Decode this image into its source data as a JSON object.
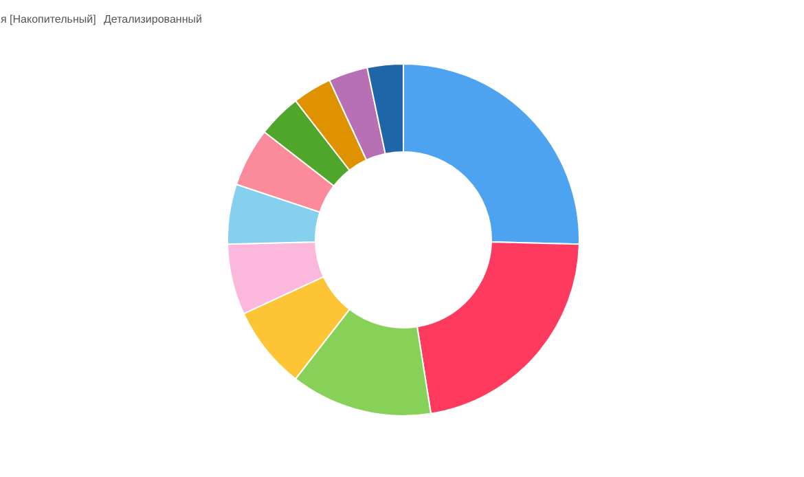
{
  "chart_data": {
    "type": "donut",
    "annotations": [
      "я [Накопительный]",
      "Детализированный"
    ],
    "categories": [
      null,
      null,
      null,
      null,
      null,
      null,
      null,
      null,
      null,
      null,
      null
    ],
    "values": [
      25.4,
      22.1,
      13.0,
      7.6,
      6.5,
      5.5,
      5.4,
      4.0,
      3.6,
      3.6,
      3.3
    ],
    "colors": [
      "#4da3f0",
      "#ff3a5f",
      "#88d158",
      "#fdc535",
      "#fbb7dc",
      "#84d0ee",
      "#fb8a9a",
      "#50a62a",
      "#df9200",
      "#b870b5",
      "#1f66a9"
    ]
  }
}
